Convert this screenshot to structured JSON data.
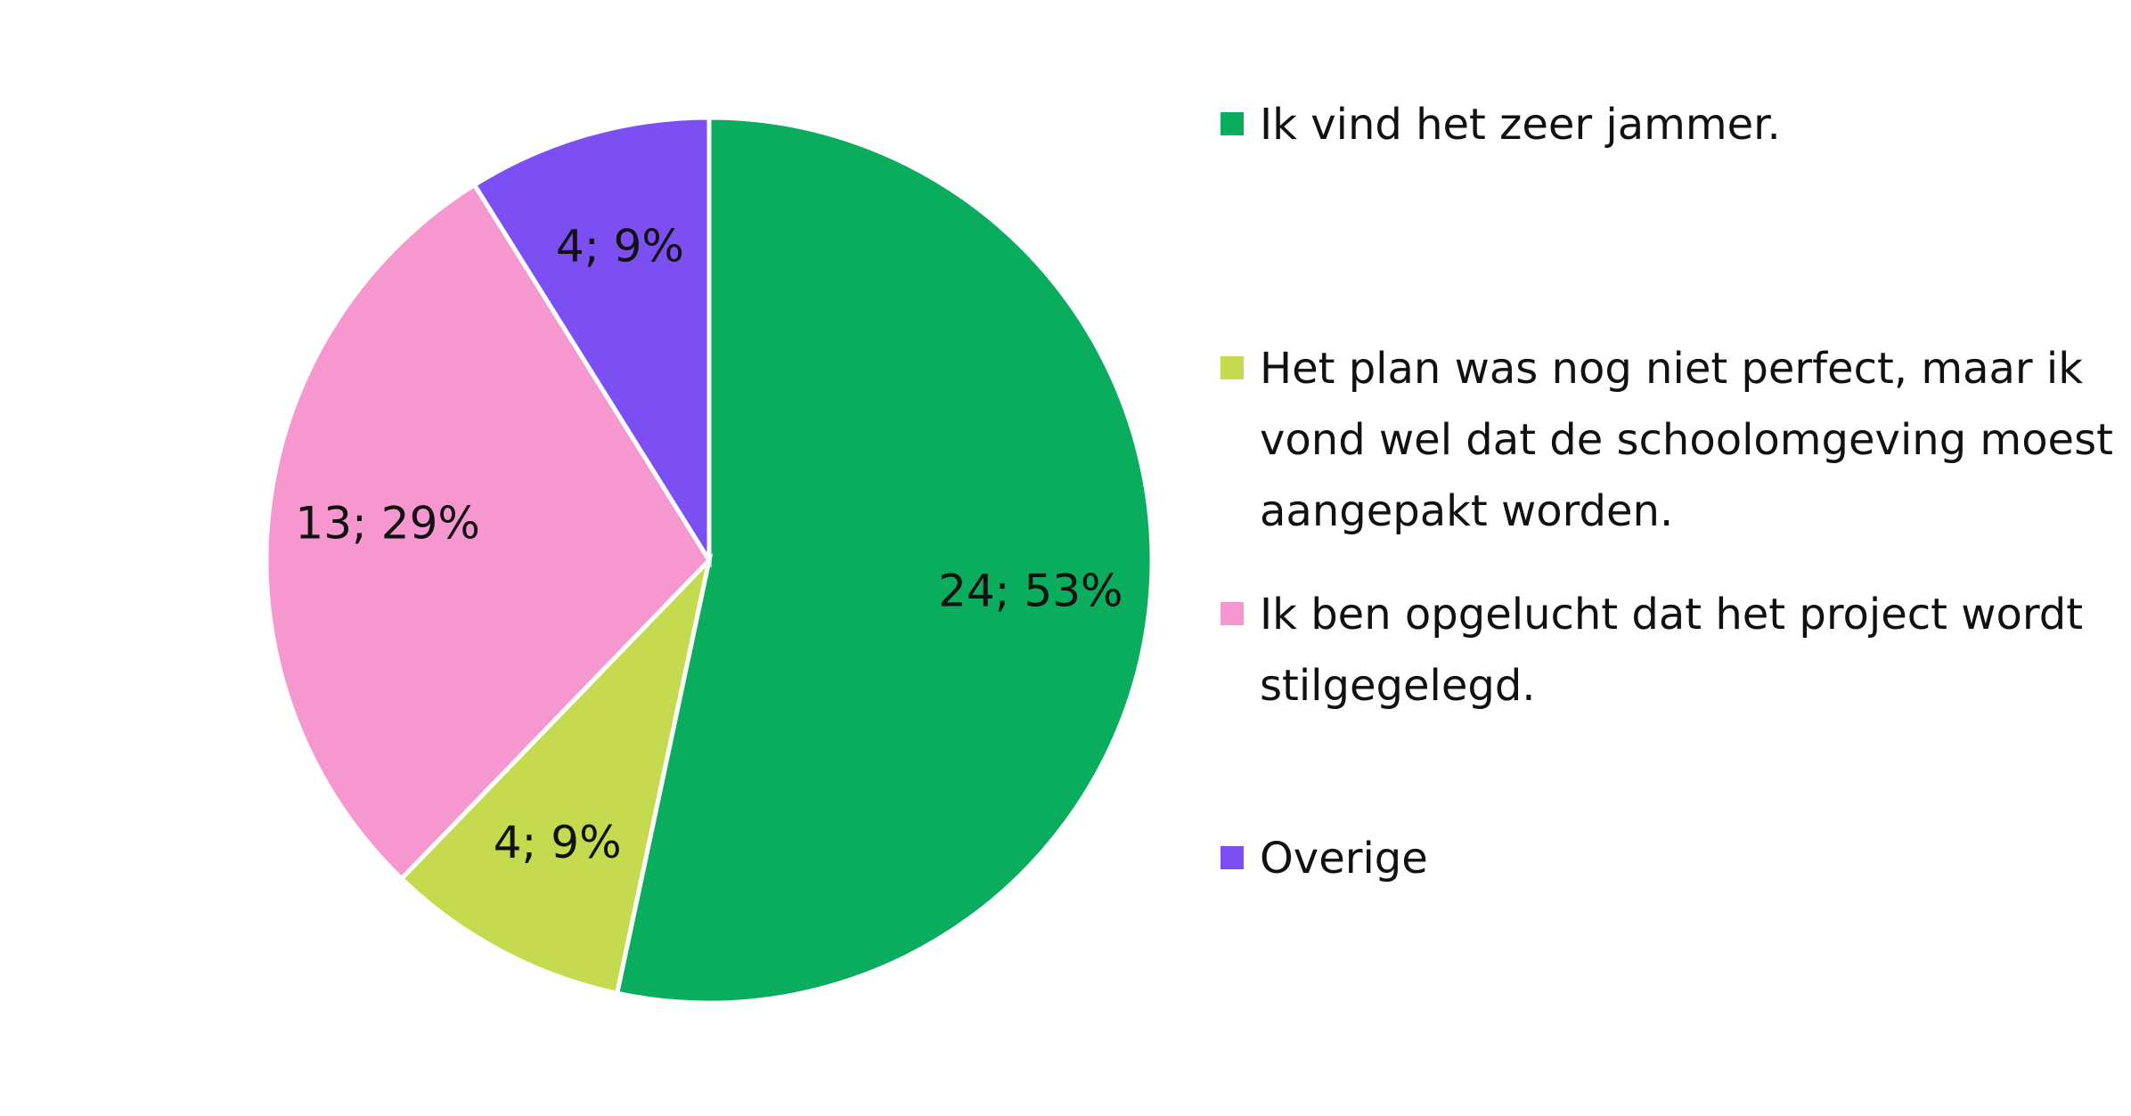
{
  "chart_data": {
    "type": "pie",
    "categories": [
      "Ik vind het zeer jammer.",
      "Het plan was nog niet perfect, maar ik vond wel dat de schoolomgeving moest aangepakt worden.",
      "Ik ben opgelucht dat het project wordt stilgegelegd.",
      "Overige"
    ],
    "values": [
      24,
      4,
      13,
      4
    ],
    "value_labels": [
      "24; 53%",
      "4; 9%",
      "13; 29%",
      "4; 9%"
    ],
    "colors": [
      "#0aad5e",
      "#c5da4f",
      "#f797cf",
      "#7b4ff2"
    ],
    "legend": "right"
  }
}
